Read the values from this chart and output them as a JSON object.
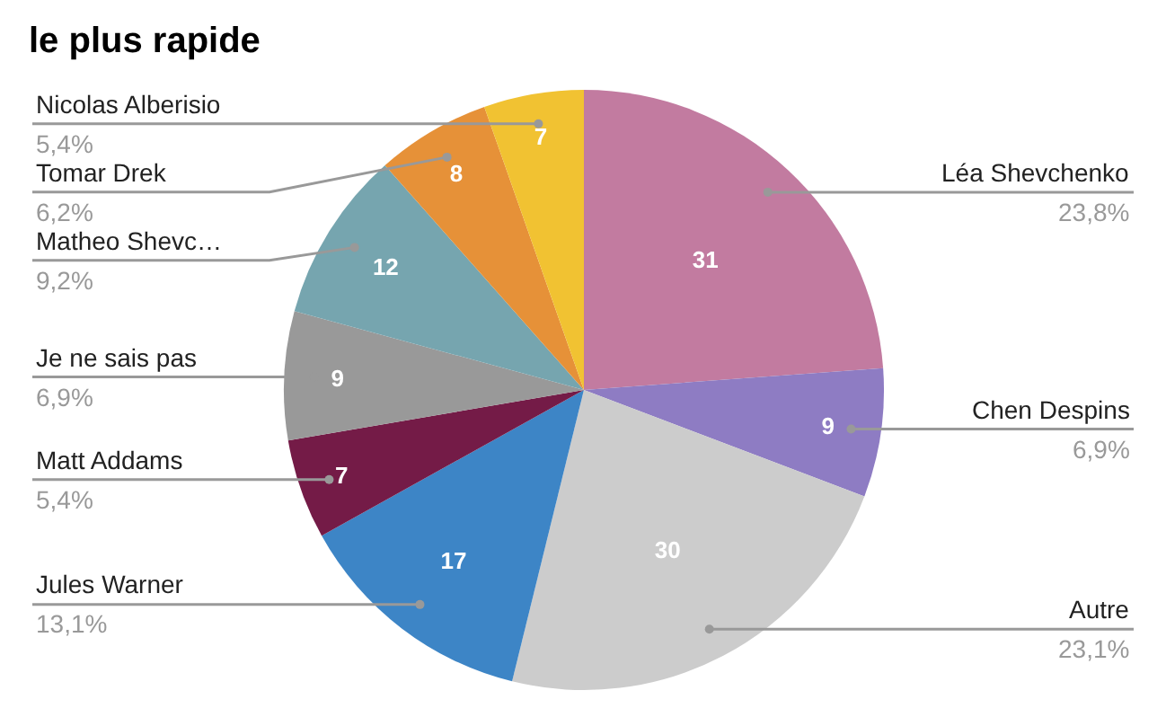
{
  "chart_data": {
    "type": "pie",
    "title": "le plus rapide",
    "categories": [
      "Léa Shevchenko",
      "Chen Despins",
      "Autre",
      "Jules Warner",
      "Matt Addams",
      "Je ne sais pas",
      "Matheo Shevc…",
      "Tomar Drek",
      "Nicolas Alberisio"
    ],
    "values": [
      31,
      9,
      30,
      17,
      7,
      9,
      12,
      8,
      7
    ],
    "colors": [
      "#c27ba0",
      "#8e7cc3",
      "#cccccc",
      "#3d85c6",
      "#741b47",
      "#999999",
      "#76a5af",
      "#e69138",
      "#f1c232"
    ],
    "annotations": [
      "23,8%",
      "6,9%",
      "23,1%",
      "13,1%",
      "5,4%",
      "6,9%",
      "9,2%",
      "6,2%",
      "5,4%"
    ],
    "data_labels": true,
    "legend": false
  }
}
